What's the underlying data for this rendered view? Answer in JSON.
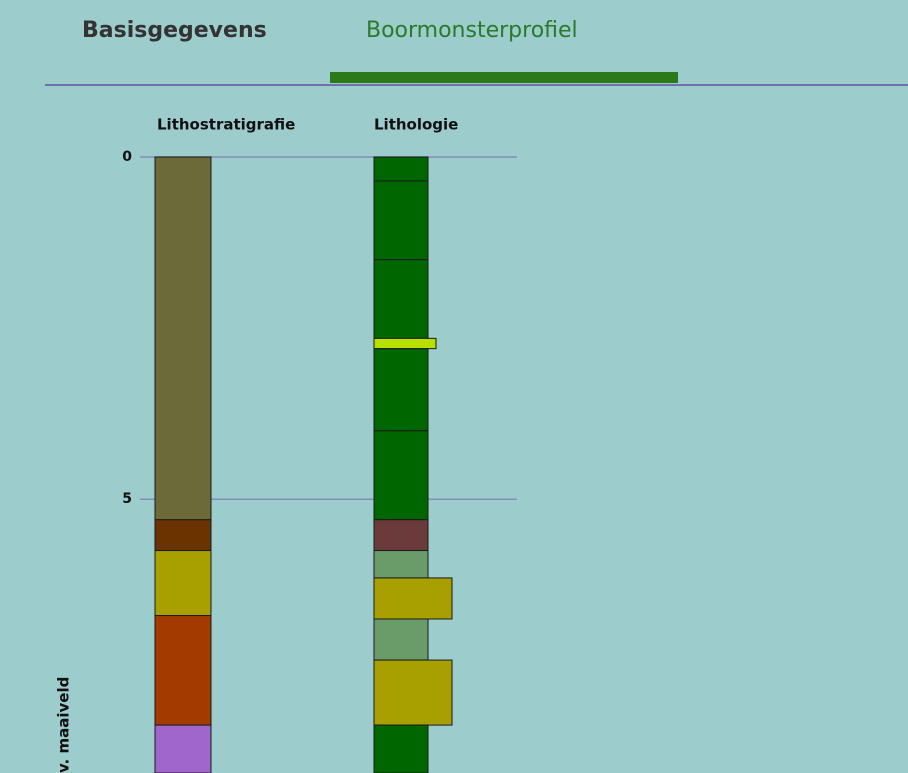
{
  "tabs": [
    "Basisgegevens",
    "Boormonsterprofiel"
  ],
  "active_tab": 1,
  "columns": {
    "lithostratigrafie": {
      "title": "Lithostratigrafie",
      "layers": [
        {
          "top": 0,
          "bottom": 5.3,
          "color": "#6b6a38"
        },
        {
          "top": 5.3,
          "bottom": 5.75,
          "color": "#6b3300"
        },
        {
          "top": 5.75,
          "bottom": 6.7,
          "color": "#a8a000"
        },
        {
          "top": 6.7,
          "bottom": 8.3,
          "color": "#a33a00"
        },
        {
          "top": 8.3,
          "bottom": 9,
          "color": "#a066cc"
        }
      ]
    },
    "lithologie": {
      "title": "Lithologie",
      "layers": [
        {
          "top": 0,
          "bottom": 0.35,
          "color": "#006600"
        },
        {
          "top": 0.35,
          "bottom": 1.5,
          "color": "#006600"
        },
        {
          "top": 1.5,
          "bottom": 2.65,
          "color": "#006600"
        },
        {
          "top": 2.65,
          "bottom": 2.8,
          "color": "#b8e000"
        },
        {
          "top": 2.8,
          "bottom": 4.0,
          "color": "#006600"
        },
        {
          "top": 4.0,
          "bottom": 5.3,
          "color": "#006600"
        },
        {
          "top": 5.3,
          "bottom": 5.75,
          "color": "#6b3a3a"
        },
        {
          "top": 5.75,
          "bottom": 6.15,
          "color": "#6a9c6a"
        },
        {
          "top": 6.15,
          "bottom": 6.75,
          "color": "#a8a000"
        },
        {
          "top": 6.75,
          "bottom": 7.35,
          "color": "#6a9c6a"
        },
        {
          "top": 7.35,
          "bottom": 8.3,
          "color": "#a8a000"
        },
        {
          "top": 8.3,
          "bottom": 9,
          "color": "#006600"
        }
      ]
    }
  },
  "depth_axis": {
    "label": "v. maaiveld",
    "lim": [
      0,
      9
    ],
    "ticks": [
      0,
      5
    ]
  }
}
